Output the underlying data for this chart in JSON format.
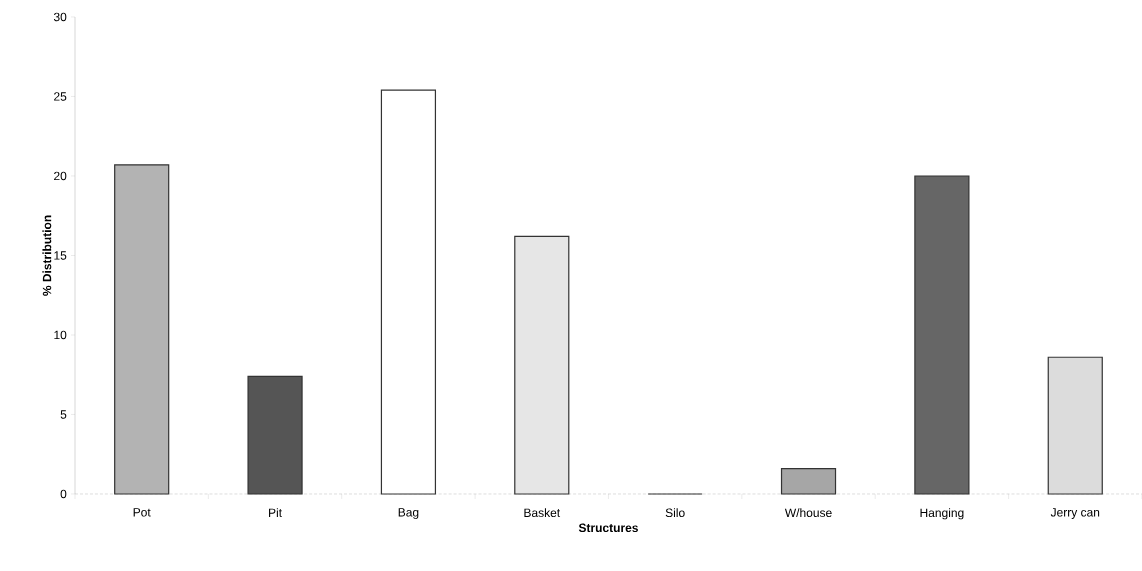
{
  "chart_data": {
    "type": "bar",
    "xlabel": "Structures",
    "ylabel": "% Distribution",
    "categories": [
      "Pot",
      "Pit",
      "Bag",
      "Basket",
      "Silo",
      "W/house",
      "Hanging",
      "Jerry can"
    ],
    "values": [
      20.7,
      7.4,
      25.4,
      16.2,
      0,
      1.6,
      20.0,
      8.6
    ],
    "colors": [
      "#b3b3b3",
      "#555555",
      "#ffffff",
      "#e6e6e6",
      "#cccccc",
      "#a6a6a6",
      "#666666",
      "#dcdcdc"
    ],
    "ylim": [
      0,
      30
    ],
    "yticks": [
      0,
      5,
      10,
      15,
      20,
      25,
      30
    ],
    "grid": false
  }
}
